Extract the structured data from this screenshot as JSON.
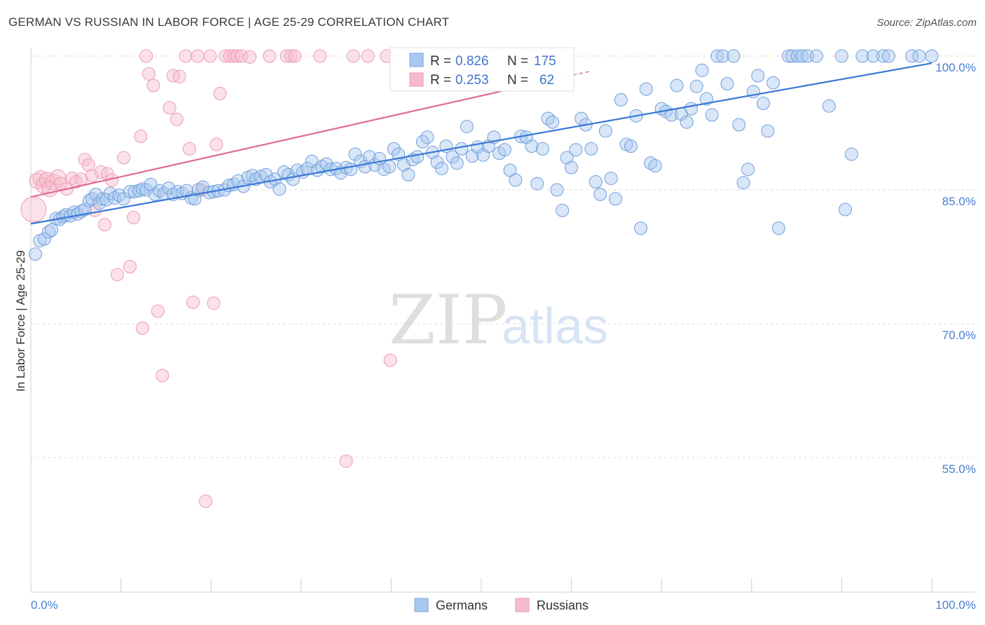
{
  "title": "GERMAN VS RUSSIAN IN LABOR FORCE | AGE 25-29 CORRELATION CHART",
  "source": "Source: ZipAtlas.com",
  "watermark": {
    "zip": "ZIP",
    "atlas": "atlas"
  },
  "colors": {
    "german": "#a9c8f0",
    "german_line": "#3a78d4",
    "russian": "#f6bccd",
    "russian_line": "#e06b94",
    "grid": "#dcdcdc",
    "tick": "#4a7fd0"
  },
  "stats": {
    "german": {
      "r_label": "R = ",
      "r": "0.826",
      "n_label": "N = ",
      "n": "175"
    },
    "russian": {
      "r_label": "R = ",
      "r": "0.253",
      "n_label": "N = ",
      "n": "62"
    }
  },
  "legend": {
    "german": "Germans",
    "russian": "Russians"
  },
  "chart_data": {
    "type": "scatter",
    "title": "GERMAN VS RUSSIAN IN LABOR FORCE | AGE 25-29 CORRELATION CHART",
    "xlabel": "",
    "ylabel": "In Labor Force | Age 25-29",
    "xlim": [
      0,
      100
    ],
    "ylim": [
      40,
      101.5
    ],
    "x_tick_labels": [
      "0.0%",
      "100.0%"
    ],
    "y_ticks": [
      55,
      70,
      85,
      100
    ],
    "y_tick_labels": [
      "55.0%",
      "70.0%",
      "85.0%",
      "100.0%"
    ],
    "grid": true,
    "legend_position": "bottom",
    "series": [
      {
        "name": "Germans",
        "trend": {
          "x": [
            0,
            100
          ],
          "y": [
            81.2,
            99.2
          ]
        },
        "points": [
          [
            0.5,
            77.8
          ],
          [
            1,
            79.3
          ],
          [
            1.5,
            79.5
          ],
          [
            2,
            80.3
          ],
          [
            2.3,
            80.5
          ],
          [
            2.8,
            81.8
          ],
          [
            3.2,
            81.7
          ],
          [
            3.6,
            82.0
          ],
          [
            3.9,
            82.2
          ],
          [
            4.4,
            82.1
          ],
          [
            4.8,
            82.5
          ],
          [
            5.2,
            82.3
          ],
          [
            5.6,
            82.6
          ],
          [
            6.0,
            82.8
          ],
          [
            6.5,
            83.8
          ],
          [
            6.8,
            84.0
          ],
          [
            7.2,
            84.5
          ],
          [
            7.6,
            83.5
          ],
          [
            8.0,
            84.0
          ],
          [
            8.4,
            83.9
          ],
          [
            8.8,
            84.6
          ],
          [
            9.3,
            84.1
          ],
          [
            9.8,
            84.4
          ],
          [
            10.3,
            84.0
          ],
          [
            11.0,
            84.8
          ],
          [
            11.5,
            84.8
          ],
          [
            12.0,
            84.9
          ],
          [
            12.4,
            85.1
          ],
          [
            12.8,
            85.0
          ],
          [
            13.3,
            85.6
          ],
          [
            13.8,
            84.5
          ],
          [
            14.3,
            84.9
          ],
          [
            14.8,
            84.6
          ],
          [
            15.3,
            85.2
          ],
          [
            15.8,
            84.5
          ],
          [
            16.3,
            84.8
          ],
          [
            16.8,
            84.6
          ],
          [
            17.3,
            84.9
          ],
          [
            17.8,
            84.1
          ],
          [
            18.2,
            84.0
          ],
          [
            18.6,
            85.0
          ],
          [
            19.1,
            85.3
          ],
          [
            19.8,
            84.7
          ],
          [
            20.3,
            84.8
          ],
          [
            20.8,
            84.9
          ],
          [
            21.5,
            85.0
          ],
          [
            22.0,
            85.5
          ],
          [
            22.5,
            85.6
          ],
          [
            23.0,
            86.0
          ],
          [
            23.6,
            85.4
          ],
          [
            24.1,
            86.4
          ],
          [
            24.6,
            86.6
          ],
          [
            25.0,
            86.2
          ],
          [
            25.5,
            86.5
          ],
          [
            26.1,
            86.7
          ],
          [
            26.6,
            85.9
          ],
          [
            27.1,
            86.2
          ],
          [
            27.6,
            85.1
          ],
          [
            28.1,
            87.0
          ],
          [
            28.6,
            86.7
          ],
          [
            29.1,
            86.2
          ],
          [
            29.6,
            87.2
          ],
          [
            30.2,
            87.0
          ],
          [
            30.7,
            87.4
          ],
          [
            31.2,
            88.2
          ],
          [
            31.8,
            87.2
          ],
          [
            32.3,
            87.6
          ],
          [
            32.8,
            87.9
          ],
          [
            33.3,
            87.3
          ],
          [
            33.9,
            87.4
          ],
          [
            34.4,
            86.9
          ],
          [
            35.0,
            87.5
          ],
          [
            35.5,
            87.3
          ],
          [
            36.0,
            89.0
          ],
          [
            36.6,
            88.2
          ],
          [
            37.1,
            87.6
          ],
          [
            37.6,
            88.7
          ],
          [
            38.2,
            87.8
          ],
          [
            38.7,
            88.5
          ],
          [
            39.2,
            87.3
          ],
          [
            39.8,
            87.6
          ],
          [
            40.3,
            89.6
          ],
          [
            40.8,
            89.0
          ],
          [
            41.4,
            87.8
          ],
          [
            41.9,
            86.7
          ],
          [
            42.4,
            88.4
          ],
          [
            42.9,
            88.7
          ],
          [
            43.5,
            90.4
          ],
          [
            44.0,
            90.9
          ],
          [
            44.6,
            89.2
          ],
          [
            45.1,
            88.1
          ],
          [
            45.6,
            87.4
          ],
          [
            46.1,
            89.9
          ],
          [
            46.8,
            88.7
          ],
          [
            47.3,
            88.0
          ],
          [
            47.8,
            89.6
          ],
          [
            48.4,
            92.1
          ],
          [
            49.0,
            88.8
          ],
          [
            49.6,
            89.8
          ],
          [
            50.2,
            88.9
          ],
          [
            50.8,
            89.9
          ],
          [
            51.4,
            90.9
          ],
          [
            52.0,
            89.1
          ],
          [
            52.6,
            89.5
          ],
          [
            53.2,
            87.2
          ],
          [
            53.8,
            86.1
          ],
          [
            54.4,
            91.0
          ],
          [
            55.0,
            90.9
          ],
          [
            55.6,
            89.9
          ],
          [
            56.2,
            85.7
          ],
          [
            56.8,
            89.6
          ],
          [
            57.4,
            93.0
          ],
          [
            57.9,
            92.6
          ],
          [
            58.4,
            85.0
          ],
          [
            59.0,
            82.7
          ],
          [
            59.5,
            88.6
          ],
          [
            60.0,
            87.5
          ],
          [
            60.5,
            89.5
          ],
          [
            61.1,
            93.0
          ],
          [
            61.6,
            92.3
          ],
          [
            62.2,
            89.6
          ],
          [
            62.7,
            85.9
          ],
          [
            63.2,
            84.5
          ],
          [
            63.8,
            91.6
          ],
          [
            64.4,
            86.3
          ],
          [
            64.9,
            84.0
          ],
          [
            65.5,
            95.1
          ],
          [
            66.1,
            90.1
          ],
          [
            66.6,
            89.9
          ],
          [
            67.2,
            93.3
          ],
          [
            67.7,
            80.7
          ],
          [
            68.3,
            96.3
          ],
          [
            68.8,
            88.0
          ],
          [
            69.3,
            87.7
          ],
          [
            70.0,
            94.1
          ],
          [
            70.5,
            93.8
          ],
          [
            71.1,
            93.4
          ],
          [
            71.7,
            96.7
          ],
          [
            72.2,
            93.5
          ],
          [
            72.8,
            92.6
          ],
          [
            73.3,
            94.1
          ],
          [
            73.9,
            96.6
          ],
          [
            74.5,
            98.4
          ],
          [
            75.0,
            95.2
          ],
          [
            75.6,
            93.4
          ],
          [
            76.2,
            100
          ],
          [
            76.8,
            100
          ],
          [
            77.3,
            96.9
          ],
          [
            78.0,
            100
          ],
          [
            78.6,
            92.3
          ],
          [
            79.1,
            85.8
          ],
          [
            79.6,
            87.3
          ],
          [
            80.2,
            96.0
          ],
          [
            80.7,
            97.8
          ],
          [
            81.3,
            94.7
          ],
          [
            81.8,
            91.6
          ],
          [
            82.4,
            97.0
          ],
          [
            83.0,
            80.7
          ],
          [
            84.1,
            100
          ],
          [
            84.5,
            100
          ],
          [
            85.1,
            100
          ],
          [
            85.6,
            100
          ],
          [
            86.2,
            100
          ],
          [
            87.2,
            100
          ],
          [
            88.6,
            94.4
          ],
          [
            90.0,
            100
          ],
          [
            90.4,
            82.8
          ],
          [
            91.1,
            89.0
          ],
          [
            92.3,
            100
          ],
          [
            93.5,
            100
          ],
          [
            94.6,
            100
          ],
          [
            95.2,
            100
          ],
          [
            97.8,
            100
          ],
          [
            98.6,
            100
          ],
          [
            100,
            100
          ]
        ]
      },
      {
        "name": "Russians",
        "trend": {
          "x": [
            0,
            52
          ],
          "y": [
            84.2,
            96.0
          ]
        },
        "points": [
          [
            0.3,
            82.8
          ],
          [
            0.7,
            86.0
          ],
          [
            1.1,
            86.3
          ],
          [
            1.4,
            85.5
          ],
          [
            1.8,
            86.1
          ],
          [
            2.1,
            85.1
          ],
          [
            2.5,
            85.9
          ],
          [
            3.0,
            86.4
          ],
          [
            3.3,
            85.7
          ],
          [
            4.0,
            85.1
          ],
          [
            4.6,
            86.3
          ],
          [
            5.0,
            85.9
          ],
          [
            5.6,
            86.2
          ],
          [
            6.0,
            88.4
          ],
          [
            6.4,
            87.8
          ],
          [
            6.8,
            86.6
          ],
          [
            7.1,
            82.7
          ],
          [
            7.8,
            87.0
          ],
          [
            8.2,
            81.1
          ],
          [
            8.5,
            86.8
          ],
          [
            9.0,
            86.1
          ],
          [
            9.6,
            75.5
          ],
          [
            10.3,
            88.6
          ],
          [
            11.0,
            76.4
          ],
          [
            11.4,
            81.9
          ],
          [
            12.2,
            91.0
          ],
          [
            12.4,
            69.5
          ],
          [
            12.8,
            100
          ],
          [
            13.1,
            98.0
          ],
          [
            13.6,
            96.7
          ],
          [
            14.1,
            71.4
          ],
          [
            14.6,
            64.2
          ],
          [
            15.4,
            94.2
          ],
          [
            15.8,
            97.8
          ],
          [
            16.2,
            92.9
          ],
          [
            16.5,
            97.7
          ],
          [
            17.2,
            100
          ],
          [
            17.6,
            89.6
          ],
          [
            18.0,
            72.4
          ],
          [
            18.5,
            100
          ],
          [
            19.0,
            85.0
          ],
          [
            19.4,
            50.1
          ],
          [
            19.9,
            100
          ],
          [
            20.3,
            72.3
          ],
          [
            20.6,
            90.1
          ],
          [
            21.0,
            95.8
          ],
          [
            21.6,
            100
          ],
          [
            22.1,
            100
          ],
          [
            22.5,
            100
          ],
          [
            22.9,
            100
          ],
          [
            23.4,
            100
          ],
          [
            24.3,
            99.9
          ],
          [
            26.5,
            100
          ],
          [
            28.4,
            100
          ],
          [
            28.9,
            100
          ],
          [
            29.3,
            100
          ],
          [
            32.1,
            100
          ],
          [
            35.0,
            54.6
          ],
          [
            35.8,
            100
          ],
          [
            37.4,
            100
          ],
          [
            39.5,
            100
          ],
          [
            39.9,
            65.9
          ]
        ]
      }
    ]
  }
}
